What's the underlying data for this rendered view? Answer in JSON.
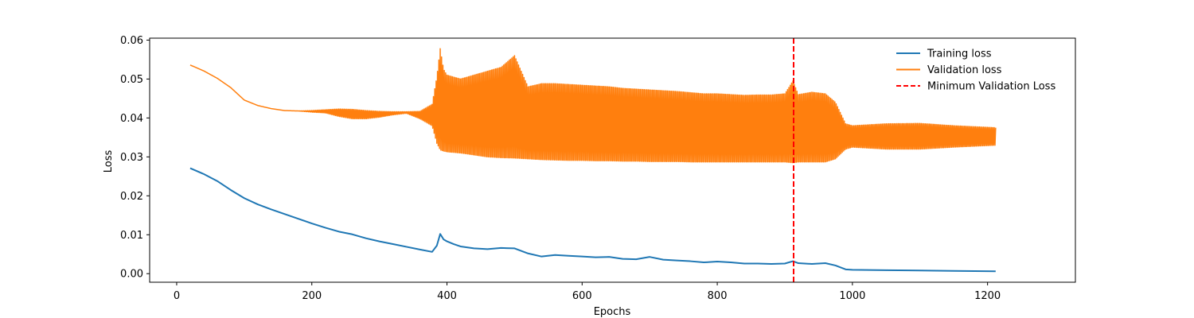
{
  "chart_data": {
    "type": "line",
    "title": "",
    "xlabel": "Epochs",
    "ylabel": "Loss",
    "xlim": [
      -40,
      1330
    ],
    "ylim": [
      -0.0022,
      0.0605
    ],
    "xticks": [
      0,
      200,
      400,
      600,
      800,
      1000,
      1200
    ],
    "xtick_labels": [
      "0",
      "200",
      "400",
      "600",
      "800",
      "1000",
      "1200"
    ],
    "yticks": [
      0.0,
      0.01,
      0.02,
      0.03,
      0.04,
      0.05,
      0.06
    ],
    "ytick_labels": [
      "0.00",
      "0.01",
      "0.02",
      "0.03",
      "0.04",
      "0.05",
      "0.06"
    ],
    "grid": false,
    "legend_position": "upper-right",
    "series": [
      {
        "name": "Training loss",
        "color": "#1f77b4",
        "style": "solid",
        "x": [
          20,
          40,
          60,
          80,
          100,
          120,
          140,
          160,
          180,
          200,
          220,
          240,
          260,
          280,
          300,
          320,
          340,
          360,
          378,
          385,
          390,
          395,
          400,
          410,
          420,
          440,
          460,
          480,
          500,
          520,
          540,
          560,
          580,
          600,
          620,
          640,
          660,
          680,
          700,
          720,
          740,
          760,
          780,
          800,
          820,
          840,
          860,
          880,
          900,
          912,
          920,
          940,
          960,
          975,
          990,
          1000,
          1050,
          1100,
          1150,
          1212
        ],
        "y": [
          0.0271,
          0.0256,
          0.0238,
          0.0215,
          0.0194,
          0.0178,
          0.0165,
          0.0153,
          0.0141,
          0.0129,
          0.0118,
          0.0108,
          0.0101,
          0.0091,
          0.0083,
          0.0076,
          0.0069,
          0.0062,
          0.0056,
          0.0072,
          0.0102,
          0.0088,
          0.0083,
          0.0076,
          0.007,
          0.0065,
          0.0063,
          0.0066,
          0.0065,
          0.0052,
          0.0044,
          0.0048,
          0.0046,
          0.0044,
          0.0042,
          0.0043,
          0.0038,
          0.0037,
          0.0043,
          0.0036,
          0.0034,
          0.0032,
          0.0029,
          0.0031,
          0.0029,
          0.0026,
          0.0026,
          0.0025,
          0.0026,
          0.0032,
          0.0027,
          0.0025,
          0.0027,
          0.0021,
          0.0011,
          0.001,
          0.0009,
          0.0008,
          0.0007,
          0.0006
        ]
      },
      {
        "name": "Validation loss",
        "color": "#ff7f0e",
        "style": "solid",
        "oscillating": true,
        "x": [
          20,
          40,
          60,
          80,
          100,
          120,
          140,
          160,
          180,
          200,
          220,
          240,
          260,
          280,
          300,
          320,
          340,
          360,
          378,
          385,
          390,
          395,
          400,
          420,
          440,
          460,
          480,
          500,
          520,
          540,
          560,
          580,
          600,
          620,
          640,
          660,
          680,
          700,
          720,
          740,
          760,
          780,
          800,
          820,
          840,
          860,
          880,
          900,
          912,
          920,
          940,
          960,
          975,
          990,
          1000,
          1050,
          1100,
          1150,
          1212
        ],
        "y_upper": [
          0.0536,
          0.0521,
          0.0502,
          0.0478,
          0.0446,
          0.0432,
          0.0424,
          0.0419,
          0.0418,
          0.0419,
          0.0421,
          0.0423,
          0.0422,
          0.0419,
          0.0417,
          0.0416,
          0.0416,
          0.0417,
          0.0435,
          0.0505,
          0.0578,
          0.0525,
          0.051,
          0.05,
          0.051,
          0.052,
          0.053,
          0.056,
          0.048,
          0.0488,
          0.0488,
          0.0486,
          0.0484,
          0.0482,
          0.048,
          0.0476,
          0.0474,
          0.0472,
          0.047,
          0.0468,
          0.0465,
          0.0462,
          0.0462,
          0.046,
          0.0458,
          0.0459,
          0.0459,
          0.0462,
          0.0495,
          0.046,
          0.0466,
          0.0462,
          0.044,
          0.0385,
          0.038,
          0.0385,
          0.0386,
          0.038,
          0.0375
        ],
        "y_lower": [
          0.0536,
          0.0521,
          0.0502,
          0.0478,
          0.0446,
          0.0432,
          0.0424,
          0.0419,
          0.0418,
          0.0415,
          0.0413,
          0.0404,
          0.0398,
          0.0398,
          0.0402,
          0.0408,
          0.0412,
          0.0398,
          0.038,
          0.0335,
          0.0318,
          0.0315,
          0.0313,
          0.031,
          0.0305,
          0.03,
          0.0298,
          0.0297,
          0.0295,
          0.0293,
          0.0292,
          0.0291,
          0.0291,
          0.029,
          0.029,
          0.0289,
          0.0289,
          0.0288,
          0.0288,
          0.0288,
          0.0287,
          0.0287,
          0.0287,
          0.0287,
          0.0287,
          0.0287,
          0.0287,
          0.0287,
          0.0285,
          0.0287,
          0.0287,
          0.0287,
          0.0295,
          0.032,
          0.0325,
          0.032,
          0.032,
          0.0325,
          0.033
        ]
      }
    ],
    "reference_lines": [
      {
        "name": "Minimum Validation Loss",
        "orientation": "vertical",
        "x": 913,
        "color": "#ff0000",
        "style": "dashed"
      }
    ]
  }
}
